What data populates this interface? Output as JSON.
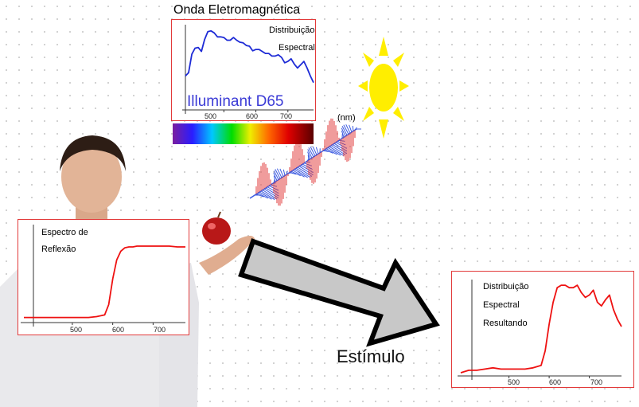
{
  "title": "Onda Eletromagnética",
  "illuminant_panel": {
    "label_line1": "Distribuição",
    "label_line2": "Espectral",
    "name": "Illuminant D65",
    "ticks": [
      "500",
      "600",
      "700"
    ]
  },
  "wave": {
    "unit": "(nm)"
  },
  "reflectance_panel": {
    "label_line1": "Espectro de",
    "label_line2": "Reflexão",
    "ticks": [
      "500",
      "600",
      "700"
    ]
  },
  "result_panel": {
    "label_line1": "Distribuição",
    "label_line2": "Espectral",
    "label_line3": "Resultando",
    "ticks": [
      "500",
      "600",
      "700"
    ]
  },
  "arrow_label": "Estímulo",
  "colors": {
    "panel_border": "#e23a3a",
    "curve_blue": "#1e2bd6",
    "curve_red": "#ee1111",
    "sun": "#ffee00",
    "arrow_fill": "#c8c8c8"
  },
  "chart_data": [
    {
      "type": "line",
      "name": "illuminant",
      "x": [
        380,
        390,
        400,
        410,
        420,
        430,
        440,
        450,
        460,
        470,
        480,
        490,
        500,
        510,
        520,
        530,
        540,
        550,
        560,
        570,
        580,
        590,
        600,
        610,
        620,
        630,
        640,
        650,
        660,
        670,
        680,
        690,
        700,
        710,
        720,
        730,
        740,
        750,
        760,
        770,
        780
      ],
      "values": [
        50,
        55,
        83,
        92,
        93,
        87,
        105,
        117,
        118,
        115,
        109,
        109,
        108,
        104,
        104,
        108,
        104,
        101,
        100,
        96,
        95,
        88,
        90,
        90,
        87,
        84,
        84,
        80,
        80,
        82,
        78,
        70,
        72,
        76,
        68,
        62,
        67,
        72,
        62,
        50,
        40
      ],
      "xlim": [
        380,
        780
      ],
      "ylim": [
        0,
        125
      ]
    },
    {
      "type": "line",
      "name": "reflectance",
      "x": [
        380,
        400,
        420,
        440,
        460,
        480,
        500,
        520,
        540,
        560,
        580,
        590,
        600,
        610,
        620,
        630,
        640,
        650,
        660,
        680,
        700,
        720,
        740,
        760,
        780
      ],
      "values": [
        0.05,
        0.05,
        0.05,
        0.05,
        0.05,
        0.05,
        0.05,
        0.05,
        0.05,
        0.06,
        0.08,
        0.2,
        0.5,
        0.72,
        0.82,
        0.86,
        0.87,
        0.87,
        0.88,
        0.88,
        0.88,
        0.88,
        0.88,
        0.87,
        0.87
      ],
      "xlim": [
        380,
        780
      ],
      "ylim": [
        0,
        1
      ]
    },
    {
      "type": "line",
      "name": "result",
      "x": [
        380,
        400,
        420,
        440,
        460,
        480,
        500,
        520,
        540,
        560,
        580,
        590,
        600,
        610,
        620,
        630,
        640,
        650,
        660,
        670,
        680,
        690,
        700,
        710,
        720,
        730,
        740,
        750,
        760,
        770,
        780
      ],
      "values": [
        2,
        4,
        4,
        5,
        6,
        5,
        5,
        5,
        5,
        6,
        8,
        20,
        42,
        60,
        72,
        74,
        74,
        72,
        72,
        74,
        68,
        64,
        66,
        70,
        60,
        57,
        62,
        66,
        54,
        46,
        40
      ],
      "xlim": [
        380,
        780
      ],
      "ylim": [
        0,
        80
      ]
    }
  ]
}
